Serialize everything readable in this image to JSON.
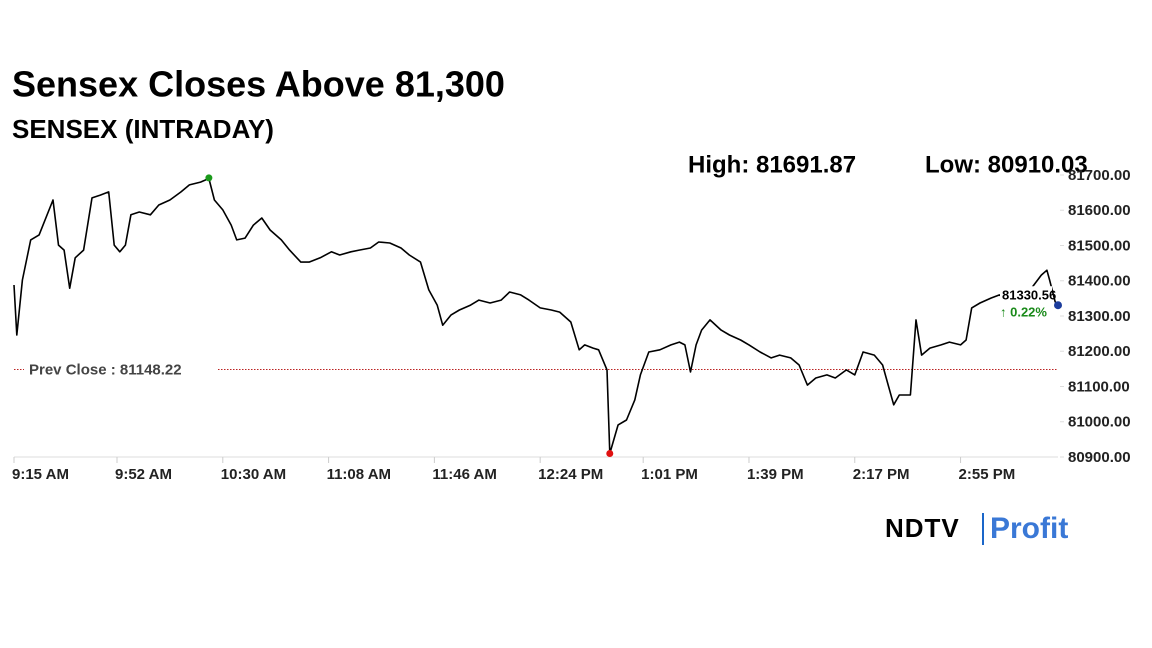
{
  "chart_data": {
    "type": "line",
    "title": "Sensex Closes Above 81,300",
    "subtitle": "SENSEX (INTRADAY)",
    "high": {
      "value": 81691.87,
      "label": "High: 81691.87",
      "x": "10:25 AM"
    },
    "low": {
      "value": 80910.03,
      "label": "Low: 80910.03",
      "x": "12:49 PM"
    },
    "prev_close": {
      "value": 81148.22,
      "label": "Prev Close : 81148.22"
    },
    "last": {
      "value": 81330.56,
      "label": "81330.56",
      "x": "3:30 PM"
    },
    "change": {
      "value": 0.22,
      "label": "↑ 0.22%"
    },
    "logo": {
      "brand": "NDTV",
      "product": "Profit"
    },
    "color": "#000000",
    "xlim": [
      "9:15 AM",
      "3:30 PM"
    ],
    "xticks": [
      "9:15 AM",
      "9:52 AM",
      "10:30 AM",
      "11:08 AM",
      "11:46 AM",
      "12:24 PM",
      "1:01 PM",
      "1:39 PM",
      "2:17 PM",
      "2:55 PM"
    ],
    "ylim": [
      80900,
      81700
    ],
    "yticks": [
      {
        "value": 80900,
        "label": "80900.00"
      },
      {
        "value": 81000,
        "label": "81000.00"
      },
      {
        "value": 81100,
        "label": "81100.00"
      },
      {
        "value": 81200,
        "label": "81200.00"
      },
      {
        "value": 81300,
        "label": "81300.00"
      },
      {
        "value": 81400,
        "label": "81400.00"
      },
      {
        "value": 81500,
        "label": "81500.00"
      },
      {
        "value": 81600,
        "label": "81600.00"
      },
      {
        "value": 81700,
        "label": "81700.00"
      }
    ],
    "x": [
      "9:15 AM",
      "9:16 AM",
      "9:18 AM",
      "9:21 AM",
      "9:24 AM",
      "9:29 AM",
      "9:31 AM",
      "9:33 AM",
      "9:35 AM",
      "9:37 AM",
      "9:40 AM",
      "9:43 AM",
      "9:46 AM",
      "9:49 AM",
      "9:51 AM",
      "9:53 AM",
      "9:55 AM",
      "9:57 AM",
      "10:00 AM",
      "10:04 AM",
      "10:07 AM",
      "10:11 AM",
      "10:15 AM",
      "10:18 AM",
      "10:22 AM",
      "10:25 AM",
      "10:27 AM",
      "10:30 AM",
      "10:33 AM",
      "10:35 AM",
      "10:38 AM",
      "10:41 AM",
      "10:44 AM",
      "10:47 AM",
      "10:51 AM",
      "10:54 AM",
      "10:58 AM",
      "11:01 AM",
      "11:05 AM",
      "11:09 AM",
      "11:12 AM",
      "11:16 AM",
      "11:19 AM",
      "11:23 AM",
      "11:26 AM",
      "11:30 AM",
      "11:34 AM",
      "11:37 AM",
      "11:41 AM",
      "11:44 AM",
      "11:47 AM",
      "11:49 AM",
      "11:52 AM",
      "11:55 AM",
      "11:59 AM",
      "12:02 PM",
      "12:06 PM",
      "12:10 PM",
      "12:13 PM",
      "12:17 PM",
      "12:20 PM",
      "12:24 PM",
      "12:28 PM",
      "12:31 PM",
      "12:35 PM",
      "12:38 PM",
      "12:40 PM",
      "12:43 PM",
      "12:45 PM",
      "12:48 PM",
      "12:49 PM",
      "12:52 PM",
      "12:55 PM",
      "12:58 PM",
      "1:00 PM",
      "1:03 PM",
      "1:07 PM",
      "1:11 PM",
      "1:14 PM",
      "1:16 PM",
      "1:18 PM",
      "1:20 PM",
      "1:22 PM",
      "1:25 PM",
      "1:29 PM",
      "1:32 PM",
      "1:36 PM",
      "1:39 PM",
      "1:43 PM",
      "1:47 PM",
      "1:50 PM",
      "1:54 PM",
      "1:57 PM",
      "2:00 PM",
      "2:03 PM",
      "2:07 PM",
      "2:10 PM",
      "2:14 PM",
      "2:17 PM",
      "2:20 PM",
      "2:24 PM",
      "2:27 PM",
      "2:29 PM",
      "2:31 PM",
      "2:33 PM",
      "2:37 PM",
      "2:39 PM",
      "2:41 PM",
      "2:44 PM",
      "2:48 PM",
      "2:51 PM",
      "2:55 PM",
      "2:57 PM",
      "2:59 PM",
      "3:02 PM",
      "3:06 PM",
      "3:09 PM",
      "3:12 PM",
      "3:16 PM",
      "3:20 PM",
      "3:24 PM",
      "3:26 PM",
      "3:27 PM",
      "3:29 PM",
      "3:30 PM"
    ],
    "values": [
      81388,
      81246,
      81402,
      81516,
      81530,
      81629,
      81501,
      81487,
      81379,
      81465,
      81487,
      81635,
      81643,
      81652,
      81501,
      81482,
      81501,
      81587,
      81595,
      81587,
      81615,
      81629,
      81652,
      81672,
      81680,
      81690,
      81629,
      81601,
      81558,
      81516,
      81521,
      81558,
      81578,
      81544,
      81516,
      81487,
      81453,
      81453,
      81465,
      81482,
      81473,
      81482,
      81487,
      81493,
      81510,
      81507,
      81493,
      81473,
      81453,
      81374,
      81331,
      81274,
      81303,
      81317,
      81331,
      81345,
      81337,
      81345,
      81368,
      81360,
      81345,
      81323,
      81317,
      81311,
      81283,
      81204,
      81218,
      81209,
      81204,
      81147,
      80910,
      80991,
      81005,
      81062,
      81133,
      81198,
      81204,
      81218,
      81226,
      81218,
      81141,
      81218,
      81260,
      81289,
      81260,
      81246,
      81232,
      81218,
      81198,
      81181,
      81189,
      81181,
      81161,
      81104,
      81124,
      81133,
      81124,
      81147,
      81133,
      81198,
      81189,
      81161,
      81104,
      81048,
      81076,
      81076,
      81289,
      81189,
      81209,
      81218,
      81226,
      81218,
      81232,
      81323,
      81337,
      81351,
      81360,
      81340,
      81345,
      81374,
      81416,
      81430,
      81402,
      81340,
      81331
    ]
  }
}
